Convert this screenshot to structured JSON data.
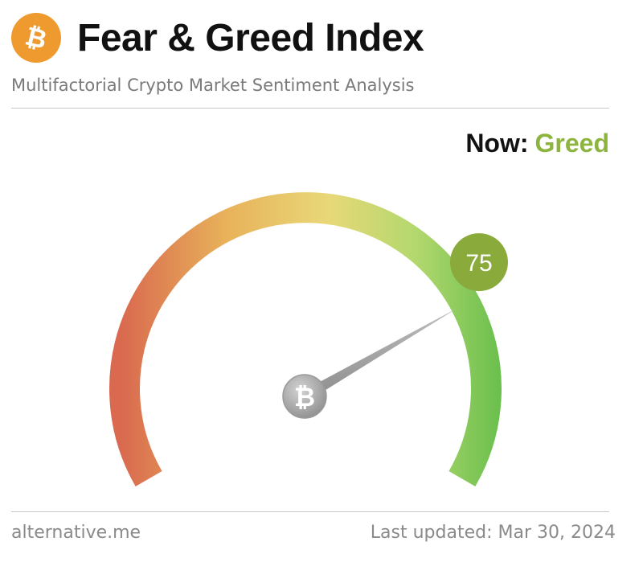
{
  "header": {
    "title": "Fear & Greed Index",
    "subtitle": "Multifactorial Crypto Market Sentiment Analysis",
    "logo_icon": "bitcoin-icon",
    "logo_color": "#ef9a2e"
  },
  "status": {
    "label": "Now:",
    "classification": "Greed",
    "classification_color": "#8db43e"
  },
  "gauge": {
    "value": 75,
    "value_text": "75",
    "min": 0,
    "max": 100,
    "badge_color": "#8aab3c",
    "gradient_colors": [
      "#d9694f",
      "#e8b25a",
      "#e8d878",
      "#b3d86e",
      "#6cc04e"
    ],
    "center_icon": "bitcoin-icon"
  },
  "footer": {
    "source": "alternative.me",
    "last_updated_label": "Last updated:",
    "last_updated_date": "Mar 30, 2024"
  }
}
